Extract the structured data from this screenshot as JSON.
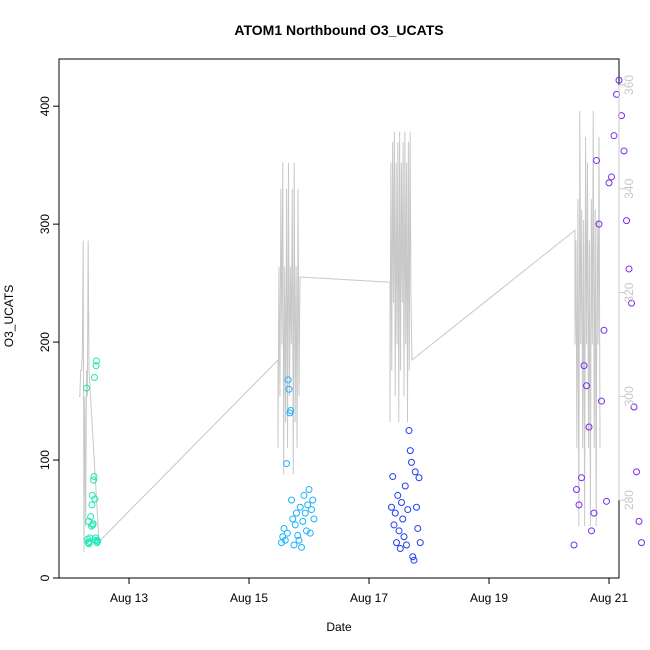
{
  "chart_data": {
    "type": "scatter",
    "title": "ATOM1 Northbound O3_UCATS",
    "xlabel": "Date",
    "ylabel": "O3_UCATS",
    "xlim": [
      "2016-08-11 20:00",
      "2016-08-21 04:00"
    ],
    "ylim": [
      0,
      440
    ],
    "x_ticks": [
      "Aug 13",
      "Aug 15",
      "Aug 17",
      "Aug 19",
      "Aug 21"
    ],
    "y_ticks": [
      0,
      100,
      200,
      300,
      400
    ],
    "secondary_axis": {
      "side": "right",
      "ticks": [
        280,
        300,
        320,
        340,
        360
      ],
      "range": [
        265,
        365
      ],
      "color": "#c8c8c8",
      "description": "grey trace plotted against the right axis"
    },
    "grid": false,
    "colors": {
      "flight1": "#1de8b5",
      "flight2": "#1ab2ff",
      "flight3": "#1f3ff0",
      "flight4": "#7a2bf0",
      "trace": "#c8c8c8"
    },
    "series": [
      {
        "points": [
          [
            "2016-08-12 07:00",
            161
          ],
          [
            "2016-08-12 07:30",
            33
          ],
          [
            "2016-08-12 07:40",
            30
          ],
          [
            "2016-08-12 07:50",
            48
          ],
          [
            "2016-08-12 08:00",
            29
          ],
          [
            "2016-08-12 08:10",
            31
          ],
          [
            "2016-08-12 08:20",
            34
          ],
          [
            "2016-08-12 08:40",
            52
          ],
          [
            "2016-08-12 09:00",
            44
          ],
          [
            "2016-08-12 09:10",
            62
          ],
          [
            "2016-08-12 09:20",
            70
          ],
          [
            "2016-08-12 09:30",
            45
          ],
          [
            "2016-08-12 09:40",
            46
          ],
          [
            "2016-08-12 09:50",
            83
          ],
          [
            "2016-08-12 10:00",
            86
          ],
          [
            "2016-08-12 10:10",
            170
          ],
          [
            "2016-08-12 10:20",
            67
          ],
          [
            "2016-08-12 10:30",
            32
          ],
          [
            "2016-08-12 10:40",
            34
          ],
          [
            "2016-08-12 10:50",
            180
          ],
          [
            "2016-08-12 11:00",
            184
          ],
          [
            "2016-08-12 11:10",
            30
          ],
          [
            "2016-08-12 11:20",
            32
          ],
          [
            "2016-08-12 11:30",
            31
          ]
        ]
      },
      {
        "points": [
          [
            "2016-08-15 13:00",
            30
          ],
          [
            "2016-08-15 13:30",
            35
          ],
          [
            "2016-08-15 14:00",
            42
          ],
          [
            "2016-08-15 14:30",
            32
          ],
          [
            "2016-08-15 15:00",
            97
          ],
          [
            "2016-08-15 15:20",
            38
          ],
          [
            "2016-08-15 15:40",
            168
          ],
          [
            "2016-08-15 16:00",
            160
          ],
          [
            "2016-08-15 16:20",
            140
          ],
          [
            "2016-08-15 16:40",
            142
          ],
          [
            "2016-08-15 17:00",
            66
          ],
          [
            "2016-08-15 17:30",
            50
          ],
          [
            "2016-08-15 18:00",
            28
          ],
          [
            "2016-08-15 18:30",
            45
          ],
          [
            "2016-08-15 19:00",
            55
          ],
          [
            "2016-08-15 19:30",
            36
          ],
          [
            "2016-08-15 20:00",
            32
          ],
          [
            "2016-08-15 20:30",
            60
          ],
          [
            "2016-08-15 21:00",
            26
          ],
          [
            "2016-08-15 21:30",
            48
          ],
          [
            "2016-08-15 22:00",
            70
          ],
          [
            "2016-08-15 22:30",
            55
          ],
          [
            "2016-08-15 23:00",
            40
          ],
          [
            "2016-08-15 23:30",
            62
          ],
          [
            "2016-08-16 00:00",
            75
          ],
          [
            "2016-08-16 00:30",
            38
          ],
          [
            "2016-08-16 01:00",
            58
          ],
          [
            "2016-08-16 01:30",
            66
          ],
          [
            "2016-08-16 02:00",
            50
          ]
        ]
      },
      {
        "points": [
          [
            "2016-08-17 09:00",
            60
          ],
          [
            "2016-08-17 09:30",
            86
          ],
          [
            "2016-08-17 10:00",
            45
          ],
          [
            "2016-08-17 10:30",
            55
          ],
          [
            "2016-08-17 11:00",
            30
          ],
          [
            "2016-08-17 11:30",
            70
          ],
          [
            "2016-08-17 12:00",
            40
          ],
          [
            "2016-08-17 12:30",
            25
          ],
          [
            "2016-08-17 13:00",
            64
          ],
          [
            "2016-08-17 13:30",
            50
          ],
          [
            "2016-08-17 14:00",
            35
          ],
          [
            "2016-08-17 14:30",
            78
          ],
          [
            "2016-08-17 15:00",
            28
          ],
          [
            "2016-08-17 15:30",
            58
          ],
          [
            "2016-08-17 16:00",
            125
          ],
          [
            "2016-08-17 16:30",
            108
          ],
          [
            "2016-08-17 17:00",
            98
          ],
          [
            "2016-08-17 17:30",
            18
          ],
          [
            "2016-08-17 18:00",
            15
          ],
          [
            "2016-08-17 18:30",
            90
          ],
          [
            "2016-08-17 19:00",
            60
          ],
          [
            "2016-08-17 19:30",
            42
          ],
          [
            "2016-08-17 20:00",
            85
          ],
          [
            "2016-08-17 20:30",
            30
          ]
        ]
      },
      {
        "points": [
          [
            "2016-08-20 10:00",
            28
          ],
          [
            "2016-08-20 11:00",
            75
          ],
          [
            "2016-08-20 12:00",
            62
          ],
          [
            "2016-08-20 13:00",
            85
          ],
          [
            "2016-08-20 14:00",
            180
          ],
          [
            "2016-08-20 15:00",
            163
          ],
          [
            "2016-08-20 16:00",
            128
          ],
          [
            "2016-08-20 17:00",
            40
          ],
          [
            "2016-08-20 18:00",
            55
          ],
          [
            "2016-08-20 19:00",
            354
          ],
          [
            "2016-08-20 20:00",
            300
          ],
          [
            "2016-08-20 21:00",
            150
          ],
          [
            "2016-08-20 22:00",
            210
          ],
          [
            "2016-08-20 23:00",
            65
          ],
          [
            "2016-08-21 00:00",
            335
          ],
          [
            "2016-08-21 01:00",
            340
          ],
          [
            "2016-08-21 02:00",
            375
          ],
          [
            "2016-08-21 03:00",
            410
          ],
          [
            "2016-08-21 04:00",
            422
          ],
          [
            "2016-08-21 05:00",
            392
          ],
          [
            "2016-08-21 06:00",
            362
          ],
          [
            "2016-08-21 07:00",
            303
          ],
          [
            "2016-08-21 08:00",
            262
          ],
          [
            "2016-08-21 09:00",
            233
          ],
          [
            "2016-08-21 10:00",
            145
          ],
          [
            "2016-08-21 11:00",
            90
          ],
          [
            "2016-08-21 12:00",
            48
          ],
          [
            "2016-08-21 13:00",
            30
          ]
        ]
      }
    ]
  }
}
